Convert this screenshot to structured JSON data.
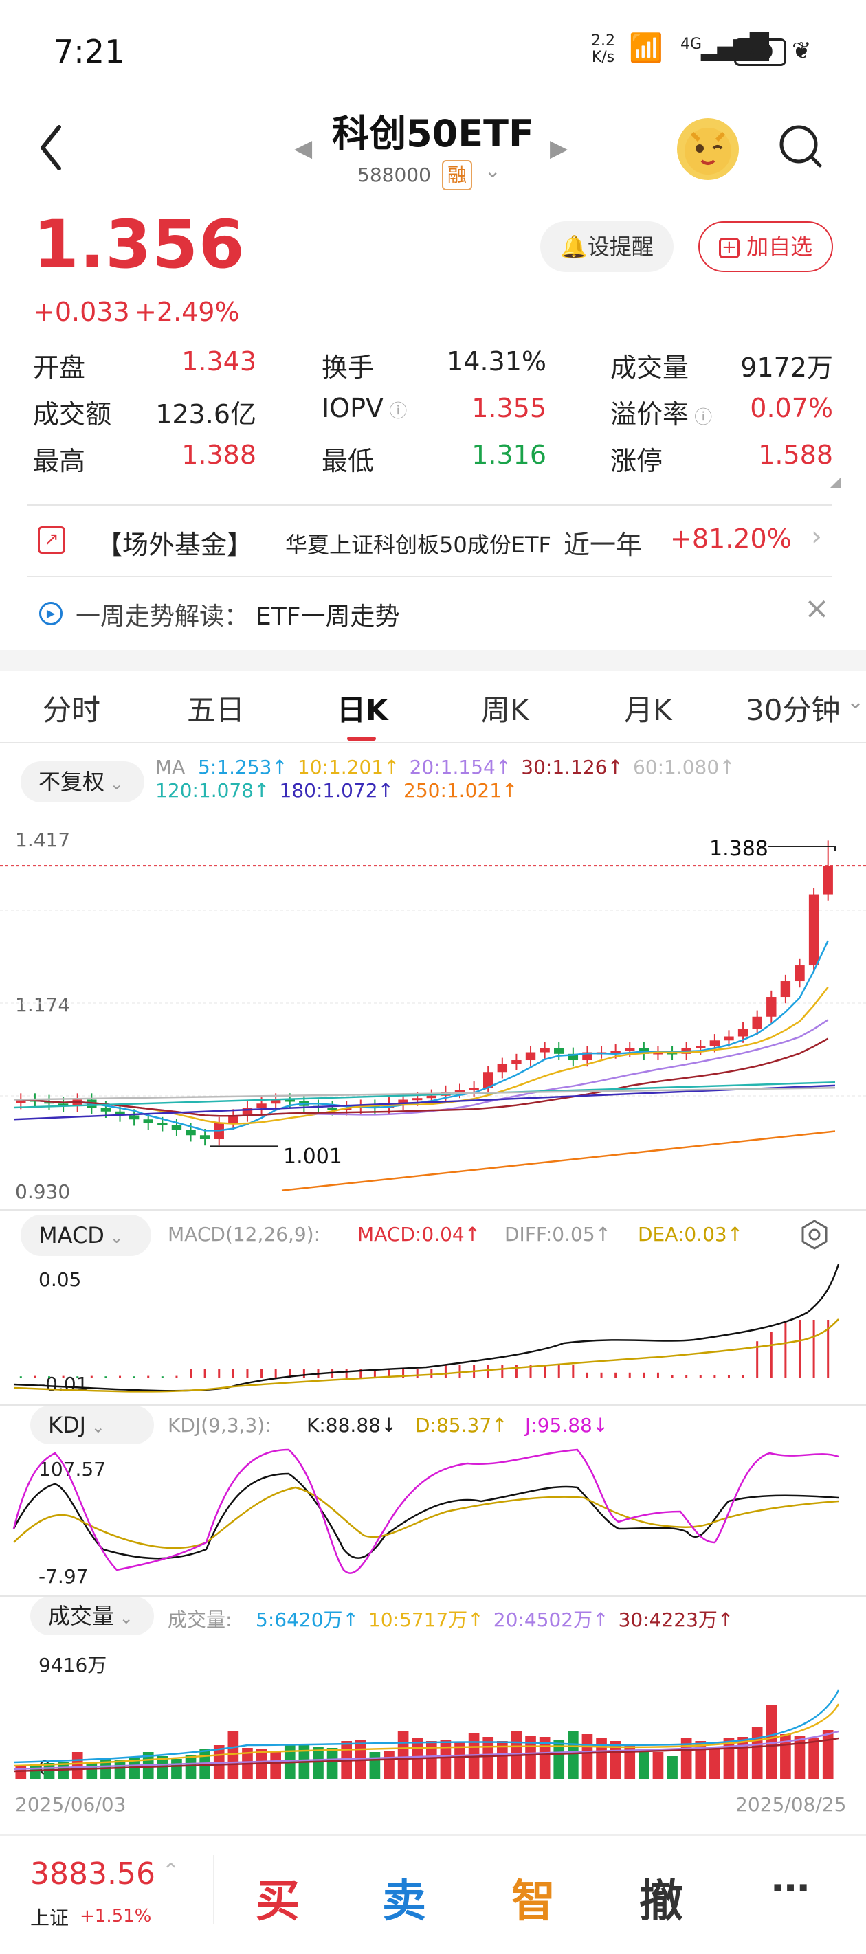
{
  "status_bar": {
    "time": "7:21",
    "net_speed": "2.2\nK/s",
    "signal": "4G",
    "battery": "49"
  },
  "header": {
    "title": "科创50ETF",
    "code": "588000",
    "badge": "融"
  },
  "quote": {
    "price": "1.356",
    "change": "+0.033",
    "change_pct": "+2.49%",
    "alert_label": "设提醒",
    "add_label": "加自选",
    "fields": [
      {
        "label": "开盘",
        "value": "1.343",
        "color": "red"
      },
      {
        "label": "换手",
        "value": "14.31%",
        "color": "black"
      },
      {
        "label": "成交量",
        "value": "9172万",
        "color": "black"
      },
      {
        "label": "成交额",
        "value": "123.6亿",
        "color": "black"
      },
      {
        "label": "IOPV",
        "value": "1.355",
        "color": "red"
      },
      {
        "label": "溢价率",
        "value": "0.07%",
        "color": "red"
      },
      {
        "label": "最高",
        "value": "1.388",
        "color": "red"
      },
      {
        "label": "最低",
        "value": "1.316",
        "color": "green"
      },
      {
        "label": "涨停",
        "value": "1.588",
        "color": "red"
      }
    ]
  },
  "offsite_fund": {
    "tag": "【场外基金】",
    "name": "华夏上证科创板50成份ETF",
    "period": "近一年",
    "return": "+81.20%"
  },
  "weekly": {
    "label": "一周走势解读：",
    "text": "ETF一周走势"
  },
  "tabs": [
    "分时",
    "五日",
    "日K",
    "周K",
    "月K",
    "30分钟"
  ],
  "active_tab": "日K",
  "ma_panel": {
    "adjust": "不复权",
    "ma_label": "MA",
    "row1": [
      {
        "text": "5:1.253↑",
        "color": "#1fa2e0"
      },
      {
        "text": "10:1.201↑",
        "color": "#e8b417"
      },
      {
        "text": "20:1.154↑",
        "color": "#a97ee6"
      },
      {
        "text": "30:1.126↑",
        "color": "#a0232c"
      },
      {
        "text": "60:1.080↑",
        "color": "#bbbbbb"
      }
    ],
    "row2": [
      {
        "text": "120:1.078↑",
        "color": "#26b5b0"
      },
      {
        "text": "180:1.072↑",
        "color": "#3a2bb8"
      },
      {
        "text": "250:1.021↑",
        "color": "#f07a12"
      }
    ],
    "y_top": "1.417",
    "y_mid": "1.174",
    "y_bot": "0.930",
    "high_label": "1.388",
    "low_label": "1.001"
  },
  "macd": {
    "name": "MACD",
    "params": "MACD(12,26,9):",
    "macd": "MACD:0.04↑",
    "diff": "DIFF:0.05↑",
    "dea": "DEA:0.03↑",
    "y_top": "0.05",
    "y_bot": "-0.01"
  },
  "kdj": {
    "name": "KDJ",
    "params": "KDJ(9,3,3):",
    "k": "K:88.88↓",
    "d": "D:85.37↑",
    "j": "J:95.88↓",
    "y_top": "107.57",
    "y_bot": "-7.97"
  },
  "volume": {
    "name": "成交量",
    "label": "成交量:",
    "ma": [
      {
        "text": "5:6420万↑",
        "color": "#1fa2e0"
      },
      {
        "text": "10:5717万↑",
        "color": "#e8b417"
      },
      {
        "text": "20:4502万↑",
        "color": "#a97ee6"
      },
      {
        "text": "30:4223万↑",
        "color": "#a0232c"
      }
    ],
    "y_top": "9416万",
    "y_bot": "0"
  },
  "dates": {
    "start": "2025/06/03",
    "end": "2025/08/25"
  },
  "chart_data": {
    "type": "candlestick",
    "close_first": 1.06,
    "high_last": 1.388,
    "low_min": 1.001,
    "ylim": [
      0.93,
      1.417
    ]
  },
  "bottom": {
    "index_value": "3883.56",
    "index_name": "上证",
    "index_pct": "+1.51%",
    "buy": "买",
    "sell": "卖",
    "smart": "智",
    "cancel": "撤",
    "more": "⋯"
  }
}
